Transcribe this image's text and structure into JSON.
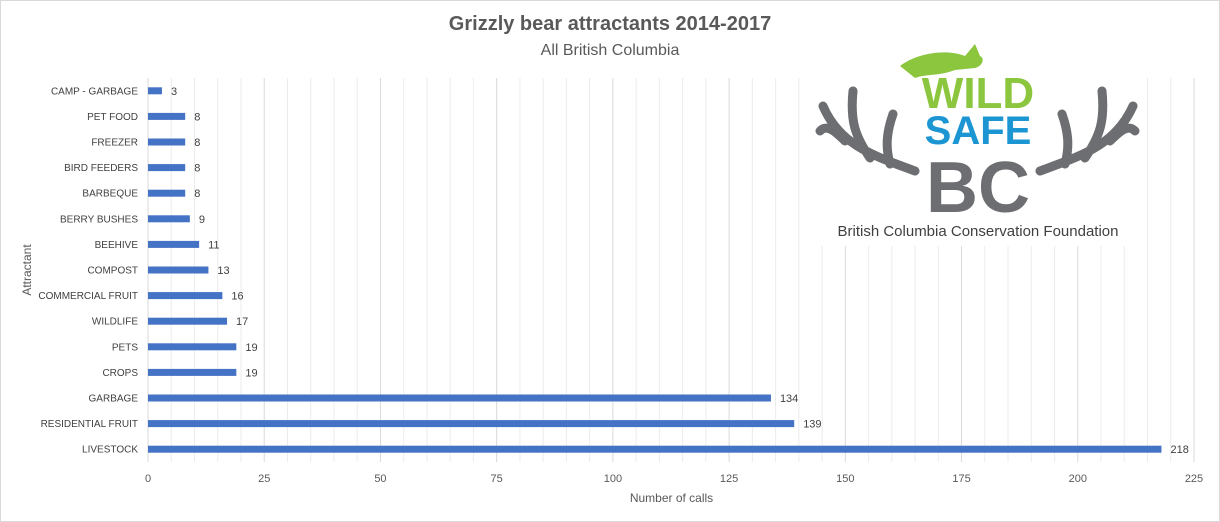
{
  "chart_data": {
    "type": "bar",
    "orientation": "horizontal",
    "title": "Grizzly bear attractants 2014-2017",
    "subtitle": "All British Columbia",
    "xlabel": "Number of calls",
    "ylabel": "Attractant",
    "xlim": [
      0,
      225
    ],
    "xticks": [
      0,
      25,
      50,
      75,
      100,
      125,
      150,
      175,
      200,
      225
    ],
    "grid": true,
    "bar_color": "#4472C4",
    "categories": [
      "CAMP - GARBAGE",
      "PET FOOD",
      "FREEZER",
      "BIRD FEEDERS",
      "BARBEQUE",
      "BERRY BUSHES",
      "BEEHIVE",
      "COMPOST",
      "COMMERCIAL FRUIT",
      "WILDLIFE",
      "PETS",
      "CROPS",
      "GARBAGE",
      "RESIDENTIAL FRUIT",
      "LIVESTOCK"
    ],
    "values": [
      3,
      8,
      8,
      8,
      8,
      9,
      11,
      13,
      16,
      17,
      19,
      19,
      134,
      139,
      218
    ]
  },
  "logo": {
    "word1": "WILD",
    "word2": "SAFE",
    "word3": "BC",
    "tagline": "British Columbia Conservation Foundation",
    "green": "#8cc63f",
    "blue": "#1c95d3",
    "gray": "#6d6e71"
  }
}
